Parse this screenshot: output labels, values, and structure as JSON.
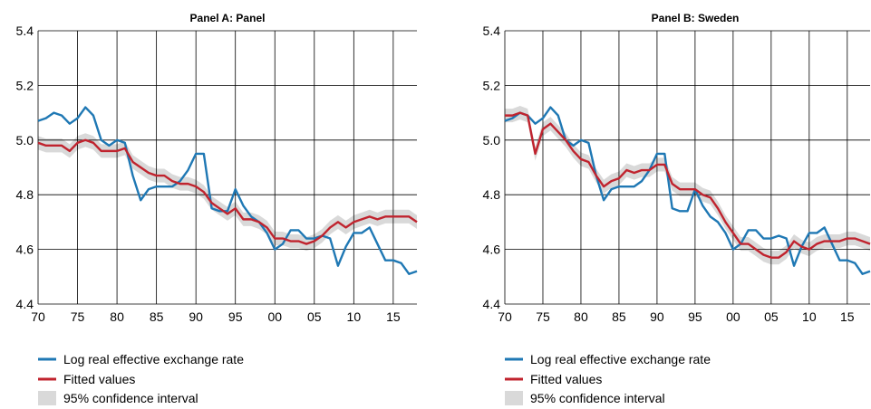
{
  "colors": {
    "actual": "#1f78b4",
    "fitted": "#c0232e",
    "band": "#d9d9d9",
    "grid": "#000000"
  },
  "legend": {
    "actual": "Log real effective exchange rate",
    "fitted": "Fitted values",
    "ci": "95% confidence interval"
  },
  "chart_data": [
    {
      "type": "line",
      "title": "Panel A: Panel",
      "x_tick_labels": [
        "70",
        "75",
        "80",
        "85",
        "90",
        "95",
        "00",
        "05",
        "10",
        "15"
      ],
      "y_tick_labels": [
        "4.4",
        "4.6",
        "4.8",
        "5.0",
        "5.2",
        "5.4"
      ],
      "ylim": [
        4.4,
        5.4
      ],
      "xlim": [
        1970,
        2018
      ],
      "grid": true,
      "x": [
        1970,
        1971,
        1972,
        1973,
        1974,
        1975,
        1976,
        1977,
        1978,
        1979,
        1980,
        1981,
        1982,
        1983,
        1984,
        1985,
        1986,
        1987,
        1988,
        1989,
        1990,
        1991,
        1992,
        1993,
        1994,
        1995,
        1996,
        1997,
        1998,
        1999,
        2000,
        2001,
        2002,
        2003,
        2004,
        2005,
        2006,
        2007,
        2008,
        2009,
        2010,
        2011,
        2012,
        2013,
        2014,
        2015,
        2016,
        2017,
        2018
      ],
      "series": [
        {
          "name": "Log real effective exchange rate",
          "values": [
            5.07,
            5.08,
            5.1,
            5.09,
            5.06,
            5.08,
            5.12,
            5.09,
            5.0,
            4.98,
            5.0,
            4.99,
            4.87,
            4.78,
            4.82,
            4.83,
            4.83,
            4.83,
            4.85,
            4.89,
            4.95,
            4.95,
            4.75,
            4.74,
            4.74,
            4.82,
            4.76,
            4.72,
            4.7,
            4.66,
            4.6,
            4.62,
            4.67,
            4.67,
            4.64,
            4.64,
            4.65,
            4.64,
            4.54,
            4.61,
            4.66,
            4.66,
            4.68,
            4.62,
            4.56,
            4.56,
            4.55,
            4.51,
            4.52
          ]
        },
        {
          "name": "Fitted values",
          "values": [
            4.99,
            4.98,
            4.98,
            4.98,
            4.96,
            4.99,
            5.0,
            4.99,
            4.96,
            4.96,
            4.96,
            4.97,
            4.92,
            4.9,
            4.88,
            4.87,
            4.87,
            4.85,
            4.84,
            4.84,
            4.83,
            4.81,
            4.77,
            4.75,
            4.73,
            4.75,
            4.71,
            4.71,
            4.7,
            4.68,
            4.64,
            4.64,
            4.63,
            4.63,
            4.62,
            4.63,
            4.65,
            4.68,
            4.7,
            4.68,
            4.7,
            4.71,
            4.72,
            4.71,
            4.72,
            4.72,
            4.72,
            4.72,
            4.7
          ]
        }
      ],
      "ci_halfwidth": 0.025
    },
    {
      "type": "line",
      "title": "Panel B: Sweden",
      "x_tick_labels": [
        "70",
        "75",
        "80",
        "85",
        "90",
        "95",
        "00",
        "05",
        "10",
        "15"
      ],
      "y_tick_labels": [
        "4.4",
        "4.6",
        "4.8",
        "5.0",
        "5.2",
        "5.4"
      ],
      "ylim": [
        4.4,
        5.4
      ],
      "xlim": [
        1970,
        2018
      ],
      "grid": true,
      "x": [
        1970,
        1971,
        1972,
        1973,
        1974,
        1975,
        1976,
        1977,
        1978,
        1979,
        1980,
        1981,
        1982,
        1983,
        1984,
        1985,
        1986,
        1987,
        1988,
        1989,
        1990,
        1991,
        1992,
        1993,
        1994,
        1995,
        1996,
        1997,
        1998,
        1999,
        2000,
        2001,
        2002,
        2003,
        2004,
        2005,
        2006,
        2007,
        2008,
        2009,
        2010,
        2011,
        2012,
        2013,
        2014,
        2015,
        2016,
        2017,
        2018
      ],
      "series": [
        {
          "name": "Log real effective exchange rate",
          "values": [
            5.07,
            5.08,
            5.1,
            5.09,
            5.06,
            5.08,
            5.12,
            5.09,
            5.0,
            4.98,
            5.0,
            4.99,
            4.87,
            4.78,
            4.82,
            4.83,
            4.83,
            4.83,
            4.85,
            4.89,
            4.95,
            4.95,
            4.75,
            4.74,
            4.74,
            4.82,
            4.76,
            4.72,
            4.7,
            4.66,
            4.6,
            4.62,
            4.67,
            4.67,
            4.64,
            4.64,
            4.65,
            4.64,
            4.54,
            4.61,
            4.66,
            4.66,
            4.68,
            4.62,
            4.56,
            4.56,
            4.55,
            4.51,
            4.52
          ]
        },
        {
          "name": "Fitted values",
          "values": [
            5.09,
            5.09,
            5.1,
            5.09,
            4.95,
            5.04,
            5.06,
            5.03,
            5.0,
            4.96,
            4.93,
            4.92,
            4.87,
            4.83,
            4.85,
            4.86,
            4.89,
            4.88,
            4.89,
            4.89,
            4.91,
            4.91,
            4.84,
            4.82,
            4.82,
            4.82,
            4.8,
            4.79,
            4.75,
            4.7,
            4.66,
            4.62,
            4.62,
            4.6,
            4.58,
            4.57,
            4.57,
            4.59,
            4.63,
            4.61,
            4.6,
            4.62,
            4.63,
            4.63,
            4.63,
            4.64,
            4.64,
            4.63,
            4.62
          ]
        }
      ],
      "ci_halfwidth": 0.025
    }
  ]
}
